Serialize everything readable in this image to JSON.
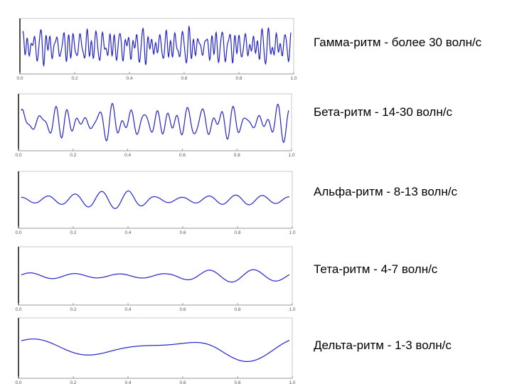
{
  "colors": {
    "trace": "#2222cc",
    "frame": "#000000",
    "tick_text": "#555555"
  },
  "chart_data": [
    {
      "type": "line",
      "title": "Гамма-ритм - более 30 волн/с",
      "xlabel": "",
      "ylabel": "",
      "xlim": [
        0,
        1
      ],
      "ylim": [
        -1,
        1
      ],
      "x_ticks": [
        "0.0",
        "0.2",
        "0.4",
        "0.6",
        "0.8",
        "1.0"
      ],
      "grid": false,
      "series": [
        {
          "waves": [
            [
              34,
              0.3,
              0.0
            ],
            [
              47,
              0.25,
              1.3
            ],
            [
              58,
              0.22,
              2.1
            ],
            [
              71,
              0.18,
              0.7
            ],
            [
              40,
              0.12,
              3.0
            ]
          ]
        }
      ]
    },
    {
      "type": "line",
      "title": "Бета-ритм - 14-30 волн/с",
      "xlabel": "",
      "ylabel": "",
      "xlim": [
        0,
        1
      ],
      "ylim": [
        -1,
        1
      ],
      "x_ticks": [
        "0.0",
        "0.2",
        "0.4",
        "0.6",
        "0.8",
        "1.0"
      ],
      "grid": false,
      "series": [
        {
          "waves": [
            [
              18,
              0.28,
              0.2
            ],
            [
              24,
              0.26,
              1.1
            ],
            [
              29,
              0.2,
              2.4
            ],
            [
              15,
              0.12,
              0.5
            ]
          ]
        }
      ]
    },
    {
      "type": "line",
      "title": "Альфа-ритм - 8-13 волн/с",
      "xlabel": "",
      "ylabel": "",
      "xlim": [
        0,
        1
      ],
      "ylim": [
        -1,
        1
      ],
      "x_ticks": [
        "0.0",
        "0.2",
        "0.4",
        "0.6",
        "0.8",
        "1.0"
      ],
      "grid": false,
      "series": [
        {
          "waves": [
            [
              10,
              0.4,
              1.6
            ]
          ],
          "envelope": [
            [
              0.0,
              0.25
            ],
            [
              0.15,
              0.45
            ],
            [
              0.3,
              0.85
            ],
            [
              0.4,
              0.9
            ],
            [
              0.5,
              0.3
            ],
            [
              0.6,
              0.25
            ],
            [
              0.75,
              0.45
            ],
            [
              0.85,
              0.5
            ],
            [
              1.0,
              0.3
            ]
          ]
        }
      ]
    },
    {
      "type": "line",
      "title": "Тета-ритм - 4-7 волн/с",
      "xlabel": "",
      "ylabel": "",
      "xlim": [
        0,
        1
      ],
      "ylim": [
        -1,
        1
      ],
      "x_ticks": [
        "0.0",
        "0.2",
        "0.4",
        "0.6",
        "0.8",
        "1.0"
      ],
      "grid": false,
      "series": [
        {
          "waves": [
            [
              6,
              0.25,
              0.3
            ]
          ],
          "envelope": [
            [
              0.0,
              0.5
            ],
            [
              0.3,
              0.3
            ],
            [
              0.55,
              0.35
            ],
            [
              0.7,
              0.9
            ],
            [
              0.85,
              1.0
            ],
            [
              1.0,
              0.7
            ]
          ]
        }
      ]
    },
    {
      "type": "line",
      "title": "Дельта-ритм - 1-3 волн/с",
      "xlabel": "",
      "ylabel": "",
      "xlim": [
        0,
        1
      ],
      "ylim": [
        -1,
        1
      ],
      "x_ticks": [
        "0.0",
        "0.2",
        "0.4",
        "0.6",
        "0.8",
        "1.0"
      ],
      "grid": false,
      "series": [
        {
          "waves": [
            [
              1.9,
              0.3,
              1.2
            ],
            [
              3.1,
              0.15,
              0.4
            ]
          ],
          "envelope": [
            [
              0.0,
              0.8
            ],
            [
              0.4,
              0.6
            ],
            [
              0.6,
              0.9
            ],
            [
              0.75,
              1.3
            ],
            [
              1.0,
              1.0
            ]
          ]
        }
      ]
    }
  ]
}
